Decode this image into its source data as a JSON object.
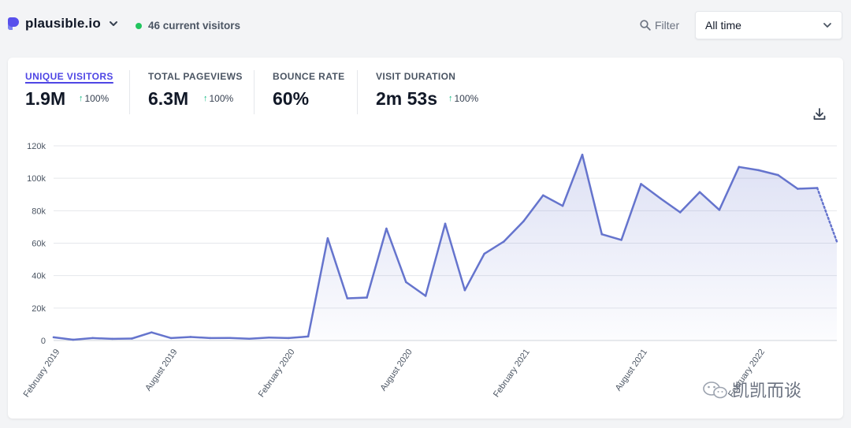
{
  "site": {
    "name": "plausible.io"
  },
  "live": {
    "label": "46 current visitors"
  },
  "filter": {
    "label": "Filter"
  },
  "period": {
    "selected": "All time"
  },
  "stats": [
    {
      "label": "UNIQUE VISITORS",
      "value": "1.9M",
      "change": "100%",
      "active": true
    },
    {
      "label": "TOTAL PAGEVIEWS",
      "value": "6.3M",
      "change": "100%",
      "active": false
    },
    {
      "label": "BOUNCE RATE",
      "value": "60%",
      "change": "",
      "active": false
    },
    {
      "label": "VISIT DURATION",
      "value": "2m 53s",
      "change": "100%",
      "active": false
    }
  ],
  "colors": {
    "accent": "#6574cd",
    "positive": "#10b981",
    "live": "#22c55e"
  },
  "watermark": "凯凯而谈",
  "chart_data": {
    "type": "area",
    "title": "",
    "xlabel": "",
    "ylabel": "",
    "ylim": [
      0,
      120000
    ],
    "y_ticks": [
      {
        "value": 0,
        "label": "0"
      },
      {
        "value": 20000,
        "label": "20k"
      },
      {
        "value": 40000,
        "label": "40k"
      },
      {
        "value": 60000,
        "label": "60k"
      },
      {
        "value": 80000,
        "label": "80k"
      },
      {
        "value": 100000,
        "label": "100k"
      },
      {
        "value": 120000,
        "label": "120k"
      }
    ],
    "x_ticks": [
      {
        "index": 0,
        "label": "February 2019"
      },
      {
        "index": 6,
        "label": "August 2019"
      },
      {
        "index": 12,
        "label": "February 2020"
      },
      {
        "index": 18,
        "label": "August 2020"
      },
      {
        "index": 24,
        "label": "February 2021"
      },
      {
        "index": 30,
        "label": "August 2021"
      },
      {
        "index": 36,
        "label": "February 2022"
      }
    ],
    "series": [
      {
        "name": "Unique visitors",
        "values": [
          2000,
          500,
          1500,
          1000,
          1200,
          5000,
          1500,
          2200,
          1500,
          1600,
          1100,
          1800,
          1500,
          2500,
          63000,
          26000,
          26500,
          69000,
          36000,
          27500,
          72000,
          31000,
          53500,
          61000,
          73500,
          89500,
          83000,
          114500,
          65500,
          62000,
          96500,
          87500,
          79000,
          91500,
          80500,
          107000,
          105000,
          102000,
          93500,
          94000,
          61000
        ],
        "partial_from_index": 39
      }
    ]
  }
}
